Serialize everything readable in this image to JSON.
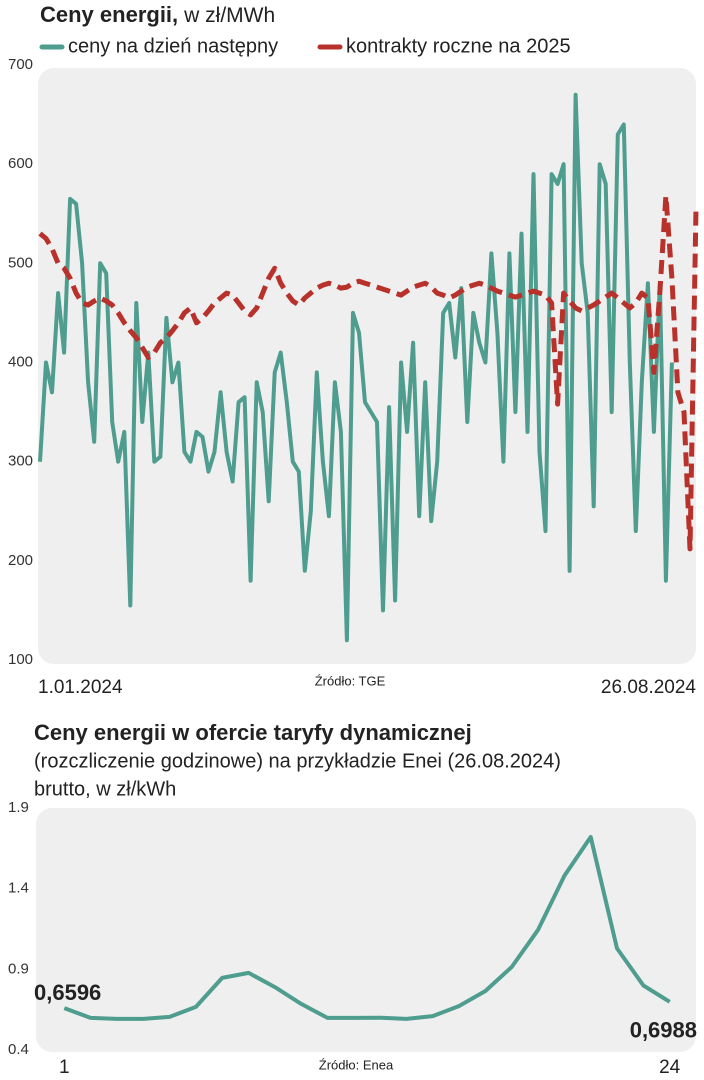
{
  "chart_data": [
    {
      "type": "line",
      "title": "Ceny energii,",
      "subtitle": "w zł/MWh",
      "source": "Źródło: TGE",
      "categories": [
        "1.01.2024",
        null,
        null,
        null,
        null,
        null,
        null,
        null,
        null,
        null,
        null,
        null,
        null,
        null,
        null,
        null,
        null,
        null,
        null,
        null,
        null,
        null,
        null,
        null,
        null,
        null,
        null,
        null,
        null,
        null,
        null,
        null,
        null,
        null,
        null,
        null,
        null,
        null,
        null,
        null,
        null,
        null,
        null,
        null,
        null,
        null,
        null,
        null,
        null,
        null,
        null,
        null,
        null,
        null,
        null,
        null,
        null,
        null,
        null,
        null,
        null,
        null,
        null,
        null,
        null,
        null,
        null,
        null,
        null,
        null,
        null,
        null,
        null,
        null,
        null,
        null,
        null,
        null,
        null,
        null,
        null,
        null,
        null,
        null,
        null,
        null,
        null,
        null,
        null,
        null,
        null,
        null,
        null,
        null,
        null,
        null,
        null,
        null,
        null,
        null,
        null,
        null,
        null,
        null,
        null,
        null,
        null,
        null,
        null,
        "26.08.2024"
      ],
      "series": [
        {
          "name": "ceny na dzień następny",
          "color": "#4e9d8f",
          "values": [
            300,
            400,
            370,
            470,
            410,
            565,
            560,
            500,
            380,
            320,
            500,
            490,
            340,
            300,
            330,
            155,
            460,
            340,
            410,
            300,
            305,
            445,
            380,
            400,
            310,
            300,
            330,
            325,
            290,
            310,
            370,
            310,
            280,
            360,
            365,
            180,
            380,
            350,
            260,
            390,
            410,
            360,
            300,
            290,
            190,
            250,
            390,
            300,
            245,
            380,
            330,
            120,
            450,
            430,
            360,
            350,
            340,
            150,
            355,
            160,
            400,
            330,
            420,
            245,
            380,
            240,
            300,
            450,
            460,
            405,
            475,
            340,
            450,
            420,
            400,
            510,
            430,
            300,
            510,
            350,
            530,
            330,
            590,
            310,
            230,
            590,
            580,
            600,
            190,
            670,
            500,
            450,
            255,
            600,
            580,
            350,
            630,
            640,
            400,
            230,
            380,
            480,
            330,
            480,
            180,
            400,
            null,
            null,
            null,
            null
          ]
        },
        {
          "name": "kontrakty roczne na 2025",
          "color": "#b8312b",
          "dashed": true,
          "values": [
            530,
            525,
            515,
            500,
            495,
            485,
            470,
            460,
            458,
            462,
            465,
            462,
            458,
            450,
            440,
            432,
            425,
            415,
            405,
            410,
            420,
            425,
            432,
            440,
            450,
            455,
            440,
            445,
            452,
            460,
            465,
            470,
            468,
            460,
            452,
            448,
            455,
            470,
            485,
            495,
            480,
            470,
            462,
            458,
            465,
            470,
            475,
            478,
            480,
            478,
            475,
            476,
            480,
            482,
            480,
            478,
            476,
            474,
            472,
            470,
            468,
            472,
            476,
            478,
            480,
            476,
            470,
            468,
            465,
            468,
            472,
            476,
            478,
            480,
            478,
            475,
            472,
            470,
            468,
            466,
            468,
            470,
            472,
            470,
            468,
            460,
            358,
            470,
            462,
            455,
            452,
            455,
            458,
            462,
            466,
            470,
            465,
            460,
            455,
            460,
            470,
            465,
            390,
            472,
            568,
            485,
            370,
            350,
            212,
            555
          ]
        }
      ],
      "ylim": [
        100,
        700
      ],
      "yticks": [
        100,
        200,
        300,
        400,
        500,
        600,
        700
      ]
    },
    {
      "type": "line",
      "title": "Ceny energii w ofercie taryfy dynamicznej",
      "subtitle": [
        "(rozczliczenie godzinowe) na przykładzie Enei (26.08.2024)",
        "brutto, w zł/kWh"
      ],
      "source": "Źródło: Enea",
      "x": [
        1,
        2,
        3,
        4,
        5,
        6,
        7,
        8,
        9,
        10,
        11,
        12,
        13,
        14,
        15,
        16,
        17,
        18,
        19,
        20,
        21,
        22,
        23,
        24
      ],
      "series": [
        {
          "color": "#4e9d8f",
          "values": [
            0.6596,
            0.599,
            0.593,
            0.593,
            0.605,
            0.667,
            0.847,
            0.878,
            0.79,
            0.686,
            0.599,
            0.599,
            0.6,
            0.593,
            0.61,
            0.673,
            0.766,
            0.915,
            1.145,
            1.48,
            1.72,
            1.03,
            0.8,
            0.6988
          ],
          "value_labels": [
            "0,6596",
            null,
            null,
            null,
            null,
            null,
            null,
            null,
            null,
            null,
            null,
            null,
            null,
            null,
            null,
            null,
            null,
            null,
            null,
            null,
            null,
            null,
            null,
            "0,6988"
          ]
        }
      ],
      "xlim": [
        0,
        25
      ],
      "xticks": [
        1,
        24
      ],
      "ylim": [
        0.4,
        1.9
      ],
      "yticks": [
        0.4,
        0.9,
        1.4,
        1.9
      ]
    }
  ]
}
